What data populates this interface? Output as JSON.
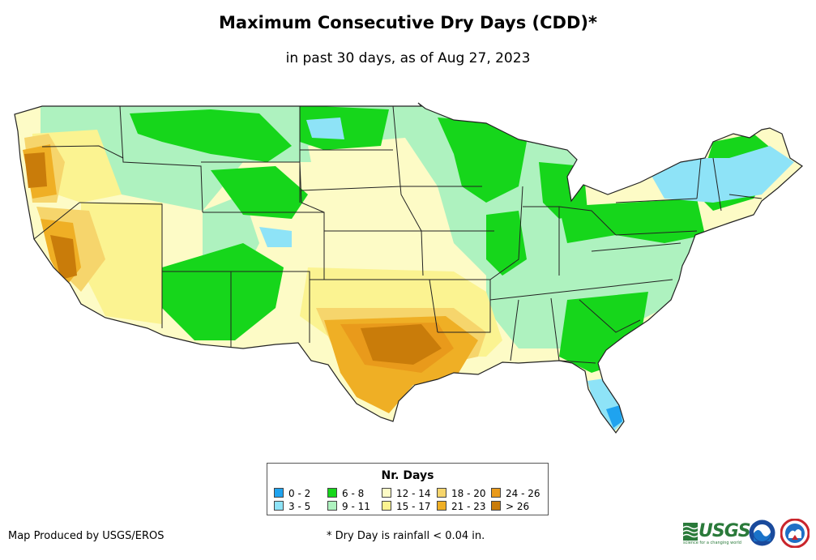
{
  "title": "Maximum Consecutive Dry Days (CDD)*",
  "subtitle": "in past 30 days, as of Aug 27, 2023",
  "legend": {
    "title": "Nr. Days",
    "classes": [
      {
        "label": "0 - 2",
        "color": "#1fa3ef"
      },
      {
        "label": "3 - 5",
        "color": "#8ee3f7"
      },
      {
        "label": "6 - 8",
        "color": "#16d61b"
      },
      {
        "label": "9 - 11",
        "color": "#aef2bf"
      },
      {
        "label": "12 - 14",
        "color": "#fdfbc6"
      },
      {
        "label": "15 - 17",
        "color": "#fbf391"
      },
      {
        "label": "18 - 20",
        "color": "#f6d56c"
      },
      {
        "label": "21 - 23",
        "color": "#efaf25"
      },
      {
        "label": "24 - 26",
        "color": "#e99a1b"
      },
      {
        "label": "> 26",
        "color": "#c97c0a"
      }
    ]
  },
  "credit": "Map Produced by USGS/EROS",
  "footnote": "* Dry Day is rainfall < 0.04 in.",
  "logos": {
    "usgs_text": "USGS",
    "usgs_tagline": "science for a changing world"
  },
  "colors": {
    "state_border": "#222222",
    "background": "#ffffff"
  }
}
